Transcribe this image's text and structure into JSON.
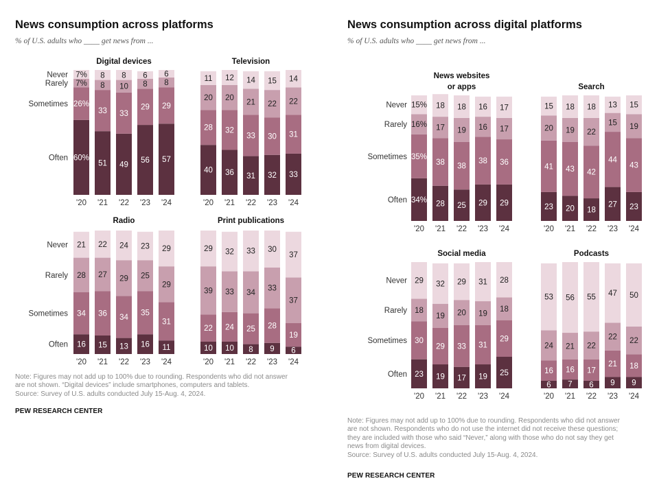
{
  "colors": {
    "often": "#5c3140",
    "sometimes": "#a86d82",
    "rarely": "#c89fae",
    "never": "#ecd8df",
    "text_dark": "#222222",
    "text_light": "#ffffff"
  },
  "left_panel": {
    "title": "News consumption across platforms",
    "subtitle": "% of U.S. adults who ____ get news from ...",
    "note_lines": [
      "Note: Figures may not add up to 100% due to rounding. Respondents who did not answer",
      "are not shown. “Digital devices” include smartphones, computers and tablets."
    ],
    "source": "Source: Survey of U.S. adults conducted July 15-Aug. 4, 2024.",
    "footer": "PEW RESEARCH CENTER"
  },
  "right_panel": {
    "title": "News consumption across digital platforms",
    "subtitle": "% of U.S. adults who ____ get news from ...",
    "note_lines": [
      "Note: Figures may not add up to 100% due to rounding. Respondents who did not answer",
      "are not shown. Respondents who do not use the internet did not receive these questions;",
      "they are included with those who said “Never,” along with those who do not say they get",
      "news from digital devices."
    ],
    "source": "Source: Survey of U.S. adults conducted July 15-Aug. 4, 2024.",
    "footer": "PEW RESEARCH CENTER"
  },
  "chart_data": [
    {
      "type": "bar",
      "stacked": true,
      "title": "Digital devices",
      "categories": [
        "'20",
        "'21",
        "'22",
        "'23",
        "'24"
      ],
      "series": [
        {
          "name": "Often",
          "values": [
            60,
            51,
            49,
            56,
            57
          ],
          "labels": [
            "60%",
            "51",
            "49",
            "56",
            "57"
          ]
        },
        {
          "name": "Sometimes",
          "values": [
            26,
            33,
            33,
            29,
            29
          ],
          "labels": [
            "26%",
            "33",
            "33",
            "29",
            "29"
          ]
        },
        {
          "name": "Rarely",
          "values": [
            7,
            8,
            10,
            8,
            8
          ],
          "labels": [
            "7%",
            "8",
            "10",
            "8",
            "8"
          ]
        },
        {
          "name": "Never",
          "values": [
            7,
            8,
            8,
            6,
            6
          ],
          "labels": [
            "7%",
            "8",
            "8",
            "6",
            "6"
          ]
        }
      ]
    },
    {
      "type": "bar",
      "stacked": true,
      "title": "Television",
      "categories": [
        "'20",
        "'21",
        "'22",
        "'23",
        "'24"
      ],
      "series": [
        {
          "name": "Often",
          "values": [
            40,
            36,
            31,
            32,
            33
          ]
        },
        {
          "name": "Sometimes",
          "values": [
            28,
            32,
            33,
            30,
            31
          ]
        },
        {
          "name": "Rarely",
          "values": [
            20,
            20,
            21,
            22,
            22
          ]
        },
        {
          "name": "Never",
          "values": [
            11,
            12,
            14,
            15,
            14
          ]
        }
      ]
    },
    {
      "type": "bar",
      "stacked": true,
      "title": "Radio",
      "categories": [
        "'20",
        "'21",
        "'22",
        "'23",
        "'24"
      ],
      "series": [
        {
          "name": "Often",
          "values": [
            16,
            15,
            13,
            16,
            11
          ]
        },
        {
          "name": "Sometimes",
          "values": [
            34,
            36,
            34,
            35,
            31
          ]
        },
        {
          "name": "Rarely",
          "values": [
            28,
            27,
            29,
            25,
            29
          ]
        },
        {
          "name": "Never",
          "values": [
            21,
            22,
            24,
            23,
            29
          ]
        }
      ]
    },
    {
      "type": "bar",
      "stacked": true,
      "title": "Print publications",
      "categories": [
        "'20",
        "'21",
        "'22",
        "'23",
        "'24"
      ],
      "series": [
        {
          "name": "Often",
          "values": [
            10,
            10,
            8,
            9,
            6
          ]
        },
        {
          "name": "Sometimes",
          "values": [
            22,
            24,
            25,
            28,
            19
          ]
        },
        {
          "name": "Rarely",
          "values": [
            39,
            33,
            34,
            33,
            37
          ]
        },
        {
          "name": "Never",
          "values": [
            29,
            32,
            33,
            30,
            37
          ]
        }
      ]
    },
    {
      "type": "bar",
      "stacked": true,
      "title": "News websites or apps",
      "title_lines": [
        "News websites",
        "or apps"
      ],
      "categories": [
        "'20",
        "'21",
        "'22",
        "'23",
        "'24"
      ],
      "series": [
        {
          "name": "Often",
          "values": [
            34,
            28,
            25,
            29,
            29
          ],
          "labels": [
            "34%",
            "28",
            "25",
            "29",
            "29"
          ]
        },
        {
          "name": "Sometimes",
          "values": [
            35,
            38,
            38,
            38,
            36
          ],
          "labels": [
            "35%",
            "38",
            "38",
            "38",
            "36"
          ]
        },
        {
          "name": "Rarely",
          "values": [
            16,
            17,
            19,
            16,
            17
          ],
          "labels": [
            "16%",
            "17",
            "19",
            "16",
            "17"
          ]
        },
        {
          "name": "Never",
          "values": [
            15,
            18,
            18,
            16,
            17
          ],
          "labels": [
            "15%",
            "18",
            "18",
            "16",
            "17"
          ]
        }
      ]
    },
    {
      "type": "bar",
      "stacked": true,
      "title": "Search",
      "categories": [
        "'20",
        "'21",
        "'22",
        "'23",
        "'24"
      ],
      "series": [
        {
          "name": "Often",
          "values": [
            23,
            20,
            18,
            27,
            23
          ]
        },
        {
          "name": "Sometimes",
          "values": [
            41,
            43,
            42,
            44,
            43
          ]
        },
        {
          "name": "Rarely",
          "values": [
            20,
            19,
            22,
            15,
            19
          ]
        },
        {
          "name": "Never",
          "values": [
            15,
            18,
            18,
            13,
            15
          ]
        }
      ]
    },
    {
      "type": "bar",
      "stacked": true,
      "title": "Social media",
      "categories": [
        "'20",
        "'21",
        "'22",
        "'23",
        "'24"
      ],
      "series": [
        {
          "name": "Often",
          "values": [
            23,
            19,
            17,
            19,
            25
          ]
        },
        {
          "name": "Sometimes",
          "values": [
            30,
            29,
            33,
            31,
            29
          ]
        },
        {
          "name": "Rarely",
          "values": [
            18,
            19,
            20,
            19,
            18
          ]
        },
        {
          "name": "Never",
          "values": [
            29,
            32,
            29,
            31,
            28
          ]
        }
      ]
    },
    {
      "type": "bar",
      "stacked": true,
      "title": "Podcasts",
      "categories": [
        "'20",
        "'21",
        "'22",
        "'23",
        "'24"
      ],
      "series": [
        {
          "name": "Often",
          "values": [
            6,
            7,
            6,
            9,
            9
          ]
        },
        {
          "name": "Sometimes",
          "values": [
            16,
            16,
            17,
            21,
            18
          ]
        },
        {
          "name": "Rarely",
          "values": [
            24,
            21,
            22,
            22,
            22
          ]
        },
        {
          "name": "Never",
          "values": [
            53,
            56,
            55,
            47,
            50
          ]
        }
      ]
    }
  ]
}
